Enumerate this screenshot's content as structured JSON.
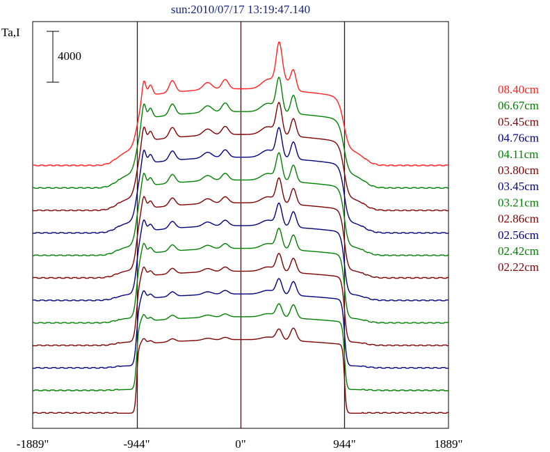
{
  "chart_data": {
    "type": "line",
    "title": "sun:2010/07/17 13:19:47.140",
    "ylabel": "Ta,I",
    "xlabel": "",
    "scale_bar_value": "4000",
    "x_ticks": [
      "-1889\"",
      "-944\"",
      "0\"",
      "944\"",
      "1889\""
    ],
    "xlim": [
      -1889,
      1889
    ],
    "vertical_lines_at": [
      -944,
      0,
      944
    ],
    "legend_placement": "right",
    "series": [
      {
        "name": "08.40cm",
        "color": "#ff2020"
      },
      {
        "name": "06.67cm",
        "color": "#008000"
      },
      {
        "name": "05.45cm",
        "color": "#800000"
      },
      {
        "name": "04.76cm",
        "color": "#000080"
      },
      {
        "name": "04.11cm",
        "color": "#008000"
      },
      {
        "name": "03.80cm",
        "color": "#800000"
      },
      {
        "name": "03.45cm",
        "color": "#000080"
      },
      {
        "name": "03.21cm",
        "color": "#008000"
      },
      {
        "name": "02.86cm",
        "color": "#800000"
      },
      {
        "name": "02.56cm",
        "color": "#000080"
      },
      {
        "name": "02.42cm",
        "color": "#008000"
      },
      {
        "name": "02.22cm",
        "color": "#800000"
      }
    ]
  }
}
